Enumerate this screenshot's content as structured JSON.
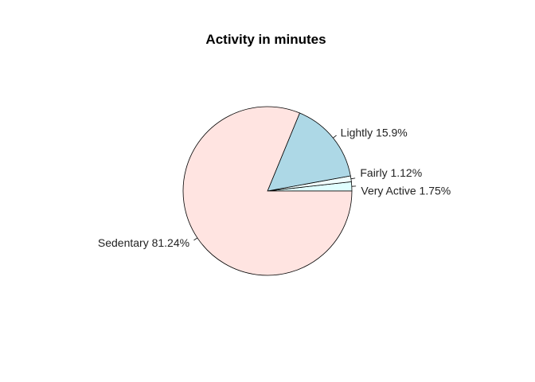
{
  "chart_data": {
    "type": "pie",
    "title": "Activity in minutes",
    "slices": [
      {
        "label": "Very Active 1.75%",
        "value": 1.75,
        "color": "#e0ffff"
      },
      {
        "label": "Fairly 1.12%",
        "value": 1.12,
        "color": "#f0ffff"
      },
      {
        "label": "Lightly 15.9%",
        "value": 15.9,
        "color": "#add8e6"
      },
      {
        "label": "Sedentary 81.24%",
        "value": 81.24,
        "color": "#ffe4e1"
      }
    ],
    "start_angle_deg": 0,
    "direction": "counterclockwise"
  }
}
